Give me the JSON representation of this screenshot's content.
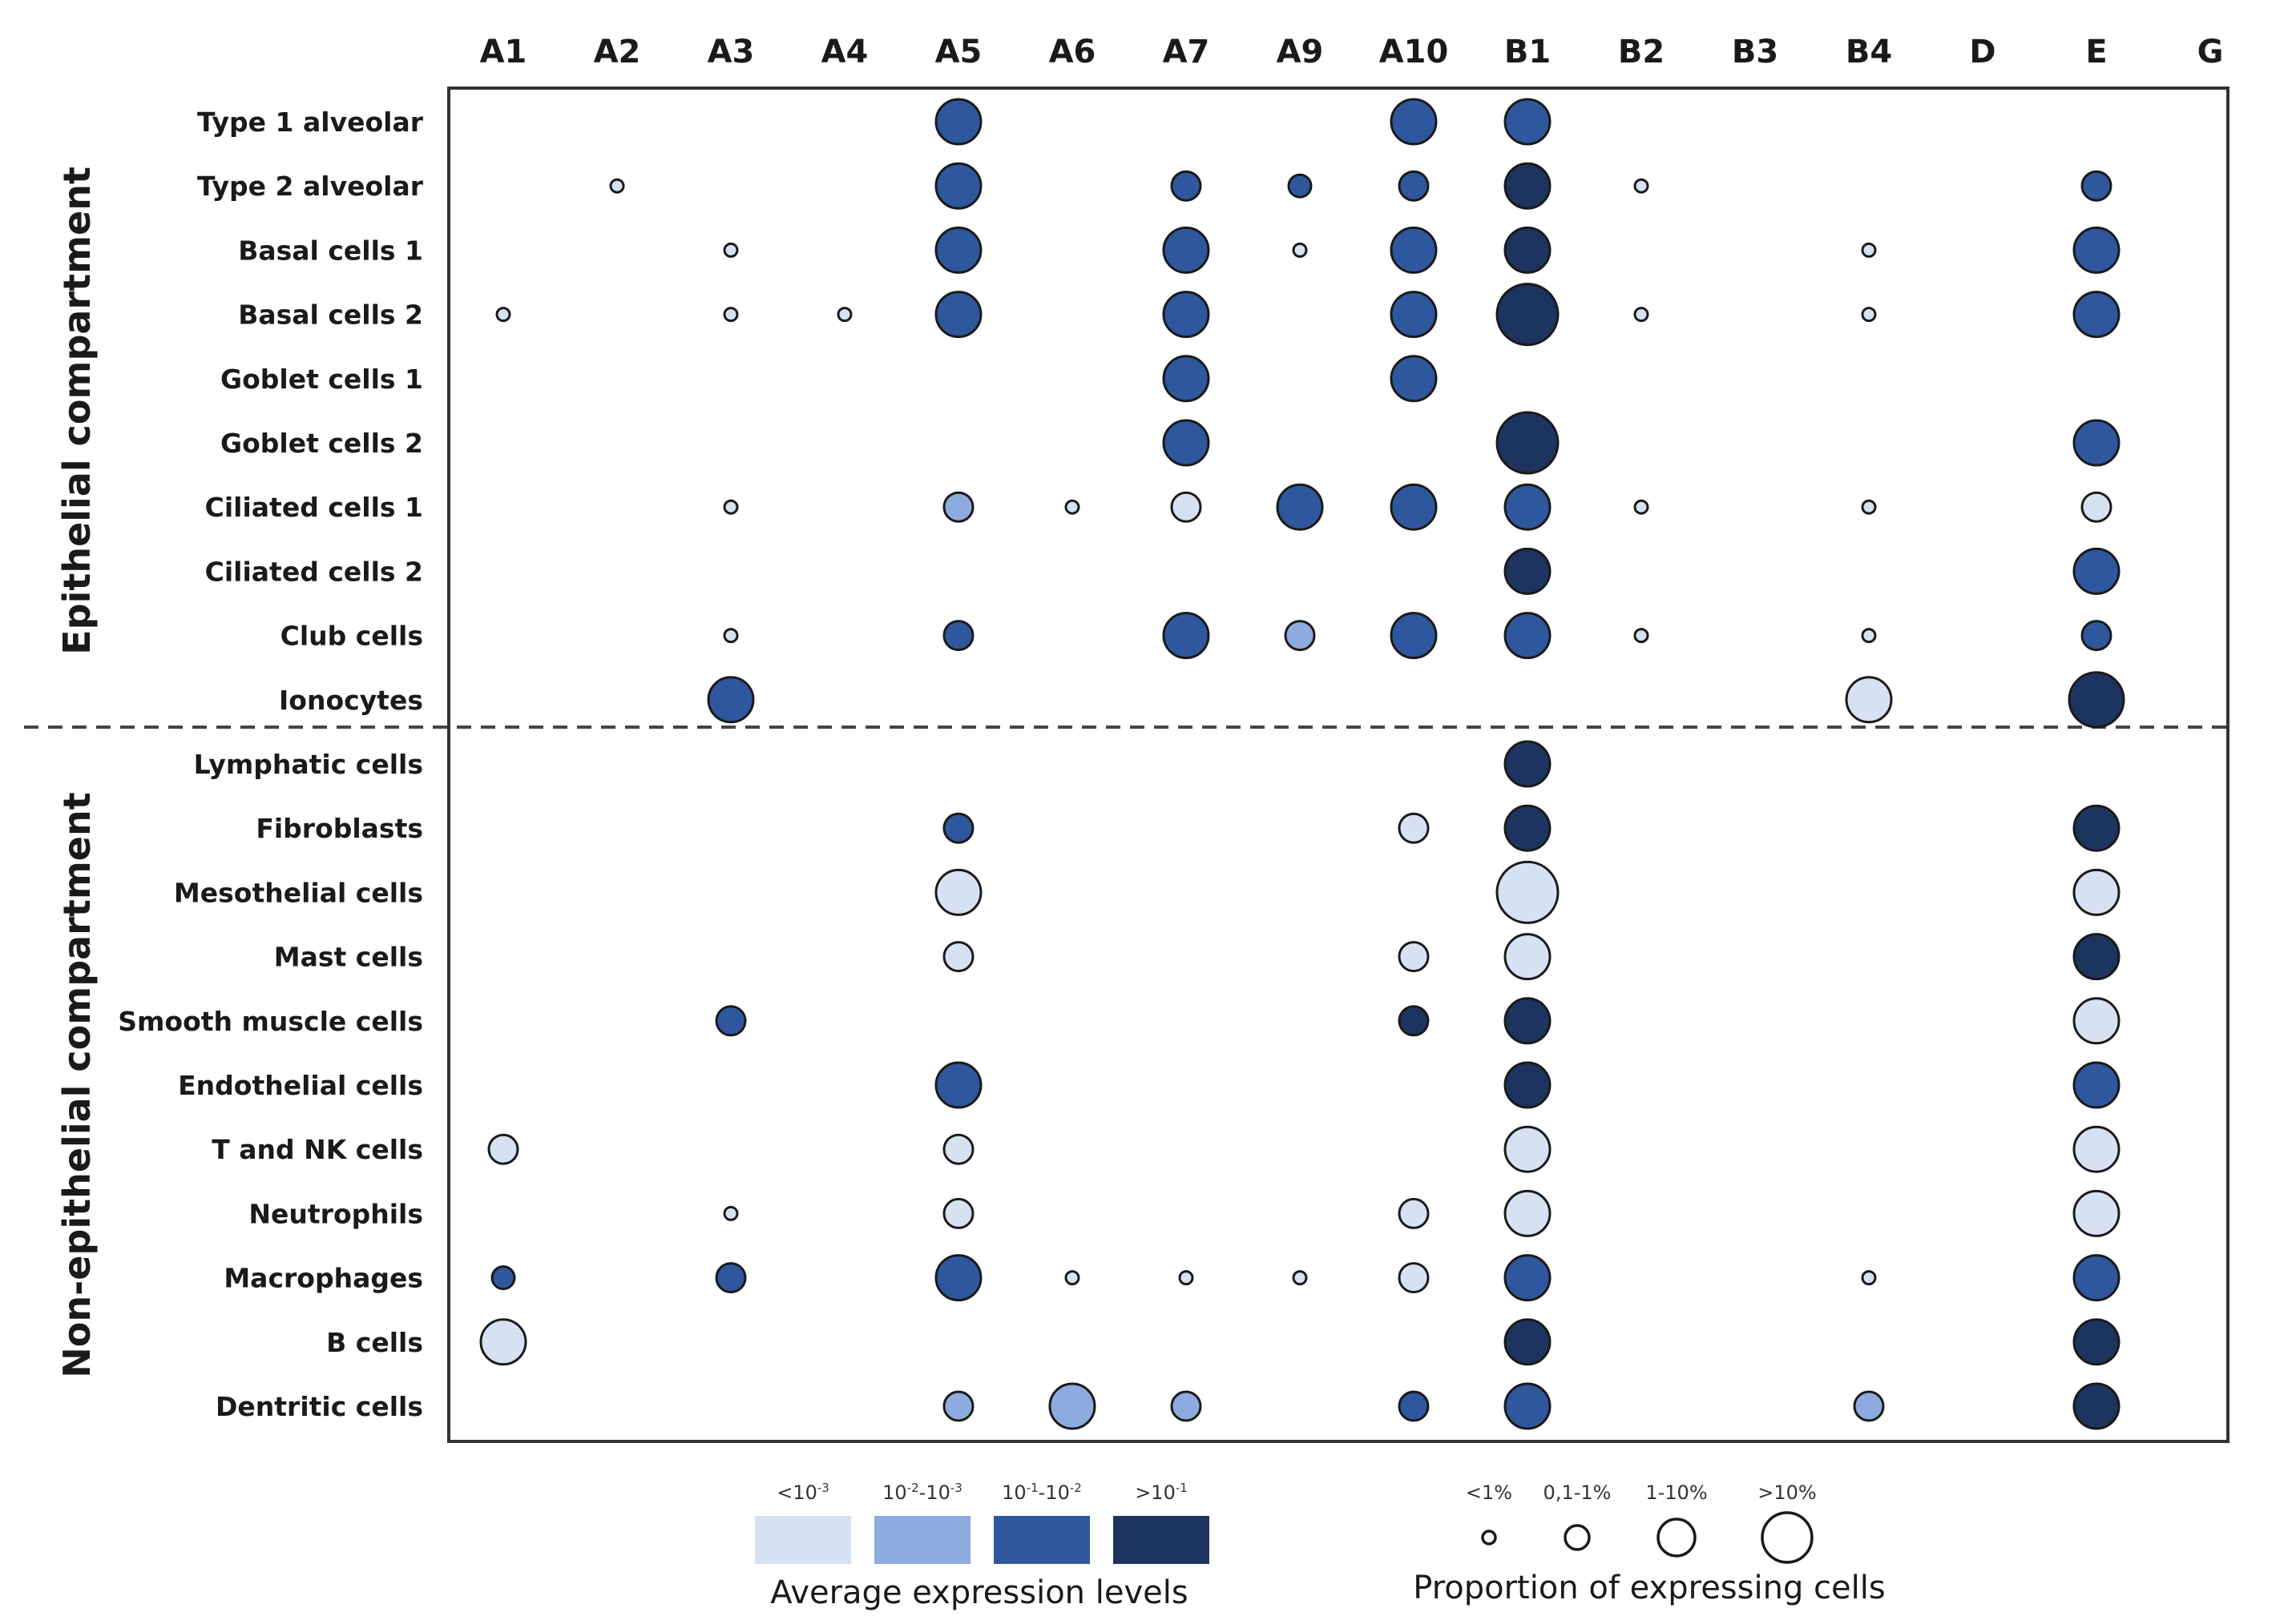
{
  "chart_data": {
    "type": "bubble-matrix",
    "columns": [
      "A1",
      "A2",
      "A3",
      "A4",
      "A5",
      "A6",
      "A7",
      "A9",
      "A10",
      "B1",
      "B2",
      "B3",
      "B4",
      "D",
      "E",
      "G"
    ],
    "rows": [
      "Type 1 alveolar",
      "Type 2 alveolar",
      "Basal cells 1",
      "Basal cells 2",
      "Goblet cells 1",
      "Goblet cells 2",
      "Ciliated cells 1",
      "Ciliated cells 2",
      "Club cells",
      "Ionocytes",
      "Lymphatic cells",
      "Fibroblasts",
      "Mesothelial cells",
      "Mast cells",
      "Smooth muscle cells",
      "Endothelial cells",
      "T and NK cells",
      "Neutrophils",
      "Macrophages",
      "B cells",
      "Dentritic cells"
    ],
    "groups": [
      {
        "name": "Epithelial compartment",
        "row_start": 0,
        "row_end": 9
      },
      {
        "name": "Non-epithelial compartment",
        "row_start": 10,
        "row_end": 20
      }
    ],
    "expression_levels": [
      {
        "label": "<10-3",
        "color": "#d6e1f2"
      },
      {
        "label": "10-2-10-3",
        "color": "#8eabdf"
      },
      {
        "label": "10-1-10-2",
        "color": "#2f579e"
      },
      {
        "label": ">10-1",
        "color": "#1d3461"
      }
    ],
    "proportion_levels": [
      "<1%",
      "0,1-1%",
      "1-10%",
      ">10%"
    ],
    "points": [
      {
        "row": 0,
        "col": "A5",
        "level": 2,
        "size": 2
      },
      {
        "row": 0,
        "col": "A10",
        "level": 2,
        "size": 2
      },
      {
        "row": 0,
        "col": "B1",
        "level": 2,
        "size": 2
      },
      {
        "row": 1,
        "col": "A2",
        "level": 0,
        "size": 0
      },
      {
        "row": 1,
        "col": "A5",
        "level": 2,
        "size": 2
      },
      {
        "row": 1,
        "col": "A7",
        "level": 2,
        "size": 1
      },
      {
        "row": 1,
        "col": "A9",
        "level": 2,
        "size": 0.6
      },
      {
        "row": 1,
        "col": "A10",
        "level": 2,
        "size": 1
      },
      {
        "row": 1,
        "col": "B1",
        "level": 3,
        "size": 2
      },
      {
        "row": 1,
        "col": "B2",
        "level": 0,
        "size": 0
      },
      {
        "row": 1,
        "col": "E",
        "level": 2,
        "size": 1
      },
      {
        "row": 2,
        "col": "A3",
        "level": 0,
        "size": 0
      },
      {
        "row": 2,
        "col": "A5",
        "level": 2,
        "size": 2
      },
      {
        "row": 2,
        "col": "A7",
        "level": 2,
        "size": 2
      },
      {
        "row": 2,
        "col": "A9",
        "level": 0,
        "size": 0
      },
      {
        "row": 2,
        "col": "A10",
        "level": 2,
        "size": 2
      },
      {
        "row": 2,
        "col": "B1",
        "level": 3,
        "size": 2
      },
      {
        "row": 2,
        "col": "B4",
        "level": 0,
        "size": 0
      },
      {
        "row": 2,
        "col": "E",
        "level": 2,
        "size": 2
      },
      {
        "row": 3,
        "col": "A1",
        "level": 0,
        "size": 0
      },
      {
        "row": 3,
        "col": "A3",
        "level": 0,
        "size": 0
      },
      {
        "row": 3,
        "col": "A4",
        "level": 0,
        "size": 0
      },
      {
        "row": 3,
        "col": "A5",
        "level": 2,
        "size": 2
      },
      {
        "row": 3,
        "col": "A7",
        "level": 2,
        "size": 2
      },
      {
        "row": 3,
        "col": "A10",
        "level": 2,
        "size": 2
      },
      {
        "row": 3,
        "col": "B1",
        "level": 3,
        "size": 3
      },
      {
        "row": 3,
        "col": "B2",
        "level": 0,
        "size": 0
      },
      {
        "row": 3,
        "col": "B4",
        "level": 0,
        "size": 0
      },
      {
        "row": 3,
        "col": "E",
        "level": 2,
        "size": 2
      },
      {
        "row": 4,
        "col": "A7",
        "level": 2,
        "size": 2
      },
      {
        "row": 4,
        "col": "A10",
        "level": 2,
        "size": 2
      },
      {
        "row": 5,
        "col": "A7",
        "level": 2,
        "size": 2
      },
      {
        "row": 5,
        "col": "B1",
        "level": 3,
        "size": 3
      },
      {
        "row": 5,
        "col": "E",
        "level": 2,
        "size": 2
      },
      {
        "row": 6,
        "col": "A3",
        "level": 0,
        "size": 0
      },
      {
        "row": 6,
        "col": "A5",
        "level": 1,
        "size": 1
      },
      {
        "row": 6,
        "col": "A6",
        "level": 0,
        "size": 0
      },
      {
        "row": 6,
        "col": "A7",
        "level": 0,
        "size": 1
      },
      {
        "row": 6,
        "col": "A9",
        "level": 2,
        "size": 2
      },
      {
        "row": 6,
        "col": "A10",
        "level": 2,
        "size": 2
      },
      {
        "row": 6,
        "col": "B1",
        "level": 2,
        "size": 2
      },
      {
        "row": 6,
        "col": "B2",
        "level": 0,
        "size": 0
      },
      {
        "row": 6,
        "col": "B4",
        "level": 0,
        "size": 0
      },
      {
        "row": 6,
        "col": "E",
        "level": 0,
        "size": 1
      },
      {
        "row": 7,
        "col": "B1",
        "level": 3,
        "size": 2
      },
      {
        "row": 7,
        "col": "E",
        "level": 2,
        "size": 2
      },
      {
        "row": 8,
        "col": "A3",
        "level": 0,
        "size": 0
      },
      {
        "row": 8,
        "col": "A5",
        "level": 2,
        "size": 1
      },
      {
        "row": 8,
        "col": "A7",
        "level": 2,
        "size": 2
      },
      {
        "row": 8,
        "col": "A9",
        "level": 1,
        "size": 1
      },
      {
        "row": 8,
        "col": "A10",
        "level": 2,
        "size": 2
      },
      {
        "row": 8,
        "col": "B1",
        "level": 2,
        "size": 2
      },
      {
        "row": 8,
        "col": "B2",
        "level": 0,
        "size": 0
      },
      {
        "row": 8,
        "col": "B4",
        "level": 0,
        "size": 0
      },
      {
        "row": 8,
        "col": "E",
        "level": 2,
        "size": 1
      },
      {
        "row": 9,
        "col": "A3",
        "level": 2,
        "size": 2
      },
      {
        "row": 9,
        "col": "B4",
        "level": 0,
        "size": 2
      },
      {
        "row": 9,
        "col": "E",
        "level": 3,
        "size": 2.6
      },
      {
        "row": 10,
        "col": "B1",
        "level": 3,
        "size": 2
      },
      {
        "row": 11,
        "col": "A5",
        "level": 2,
        "size": 1
      },
      {
        "row": 11,
        "col": "A10",
        "level": 0,
        "size": 1
      },
      {
        "row": 11,
        "col": "B1",
        "level": 3,
        "size": 2
      },
      {
        "row": 11,
        "col": "E",
        "level": 3,
        "size": 2
      },
      {
        "row": 12,
        "col": "A5",
        "level": 0,
        "size": 2
      },
      {
        "row": 12,
        "col": "B1",
        "level": 0,
        "size": 3
      },
      {
        "row": 12,
        "col": "E",
        "level": 0,
        "size": 2
      },
      {
        "row": 13,
        "col": "A5",
        "level": 0,
        "size": 1
      },
      {
        "row": 13,
        "col": "A10",
        "level": 0,
        "size": 1
      },
      {
        "row": 13,
        "col": "B1",
        "level": 0,
        "size": 2
      },
      {
        "row": 13,
        "col": "E",
        "level": 3,
        "size": 2
      },
      {
        "row": 14,
        "col": "A3",
        "level": 2,
        "size": 1
      },
      {
        "row": 14,
        "col": "A10",
        "level": 3,
        "size": 1
      },
      {
        "row": 14,
        "col": "B1",
        "level": 3,
        "size": 2
      },
      {
        "row": 14,
        "col": "E",
        "level": 0,
        "size": 2
      },
      {
        "row": 15,
        "col": "A5",
        "level": 2,
        "size": 2
      },
      {
        "row": 15,
        "col": "B1",
        "level": 3,
        "size": 2
      },
      {
        "row": 15,
        "col": "E",
        "level": 2,
        "size": 2
      },
      {
        "row": 16,
        "col": "A1",
        "level": 0,
        "size": 1
      },
      {
        "row": 16,
        "col": "A5",
        "level": 0,
        "size": 1
      },
      {
        "row": 16,
        "col": "B1",
        "level": 0,
        "size": 2
      },
      {
        "row": 16,
        "col": "E",
        "level": 0,
        "size": 2
      },
      {
        "row": 17,
        "col": "A3",
        "level": 0,
        "size": 0
      },
      {
        "row": 17,
        "col": "A5",
        "level": 0,
        "size": 1
      },
      {
        "row": 17,
        "col": "A10",
        "level": 0,
        "size": 1
      },
      {
        "row": 17,
        "col": "B1",
        "level": 0,
        "size": 2
      },
      {
        "row": 17,
        "col": "E",
        "level": 0,
        "size": 2
      },
      {
        "row": 18,
        "col": "A1",
        "level": 2,
        "size": 0.6
      },
      {
        "row": 18,
        "col": "A3",
        "level": 2,
        "size": 1
      },
      {
        "row": 18,
        "col": "A5",
        "level": 2,
        "size": 2
      },
      {
        "row": 18,
        "col": "A6",
        "level": 0,
        "size": 0
      },
      {
        "row": 18,
        "col": "A7",
        "level": 0,
        "size": 0
      },
      {
        "row": 18,
        "col": "A9",
        "level": 0,
        "size": 0
      },
      {
        "row": 18,
        "col": "A10",
        "level": 0,
        "size": 1
      },
      {
        "row": 18,
        "col": "B1",
        "level": 2,
        "size": 2
      },
      {
        "row": 18,
        "col": "B4",
        "level": 0,
        "size": 0
      },
      {
        "row": 18,
        "col": "E",
        "level": 2,
        "size": 2
      },
      {
        "row": 19,
        "col": "A1",
        "level": 0,
        "size": 2
      },
      {
        "row": 19,
        "col": "B1",
        "level": 3,
        "size": 2
      },
      {
        "row": 19,
        "col": "E",
        "level": 3,
        "size": 2
      },
      {
        "row": 20,
        "col": "A5",
        "level": 1,
        "size": 1
      },
      {
        "row": 20,
        "col": "A6",
        "level": 1,
        "size": 2
      },
      {
        "row": 20,
        "col": "A7",
        "level": 1,
        "size": 1
      },
      {
        "row": 20,
        "col": "A10",
        "level": 2,
        "size": 1
      },
      {
        "row": 20,
        "col": "B1",
        "level": 2,
        "size": 2
      },
      {
        "row": 20,
        "col": "B4",
        "level": 1,
        "size": 1
      },
      {
        "row": 20,
        "col": "E",
        "level": 3,
        "size": 2
      }
    ],
    "legend": {
      "expression_title": "Average expression levels",
      "proportion_title": "Proportion of expressing cells"
    }
  },
  "expr_labels": [
    {
      "main": "<10",
      "sup": "-3"
    },
    {
      "main": "10",
      "sup": "-2",
      "main2": "-10",
      "sup2": "-3"
    },
    {
      "main": "10",
      "sup": "-1",
      "main2": "-10",
      "sup2": "-2"
    },
    {
      "main": ">10",
      "sup": "-1"
    }
  ]
}
